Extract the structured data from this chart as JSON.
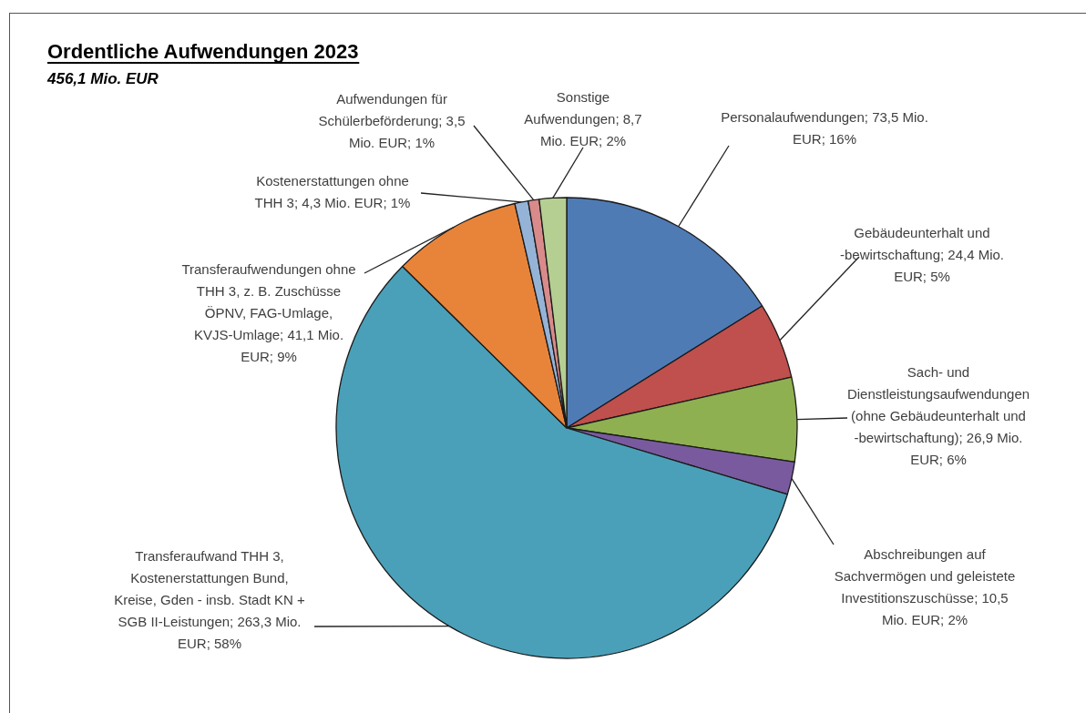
{
  "chart_data": {
    "type": "pie",
    "title": "Ordentliche Aufwendungen 2023",
    "subtitle": "456,1 Mio. EUR",
    "categories": [
      "Personalaufwendungen",
      "Gebäudeunterhalt und -bewirtschaftung",
      "Sach- und Dienstleistungsaufwendungen (ohne Gebäudeunterhalt und -bewirtschaftung)",
      "Abschreibungen auf Sachvermögen und geleistete Investitionszuschüsse",
      "Transferaufwand THH 3, Kostenerstattungen Bund, Kreise, Gden - insb. Stadt KN + SGB II-Leistungen",
      "Transferaufwendungen ohne THH 3, z. B. Zuschüsse ÖPNV, FAG-Umlage, KVJS-Umlage",
      "Kostenerstattungen ohne THH 3",
      "Aufwendungen für Schülerbeförderung",
      "Sonstige Aufwendungen"
    ],
    "values": [
      73.5,
      24.4,
      26.9,
      10.5,
      263.3,
      41.1,
      4.3,
      3.5,
      8.7
    ],
    "value_labels": [
      "73,5 Mio. EUR; 16%",
      "24,4 Mio. EUR; 5%",
      "26,9 Mio. EUR; 6%",
      "10,5 Mio. EUR; 2%",
      "263,3 Mio. EUR; 58%",
      "41,1 Mio. EUR; 9%",
      "4,3 Mio. EUR; 1%",
      "3,5 Mio. EUR; 1%",
      "8,7 Mio. EUR; 2%"
    ],
    "colors": [
      "#4f7bb5",
      "#c0504d",
      "#8fb050",
      "#7a5a9e",
      "#4aa0b8",
      "#e8843a",
      "#95b3d7",
      "#d98a8a",
      "#b5cf92"
    ],
    "legend": false
  }
}
